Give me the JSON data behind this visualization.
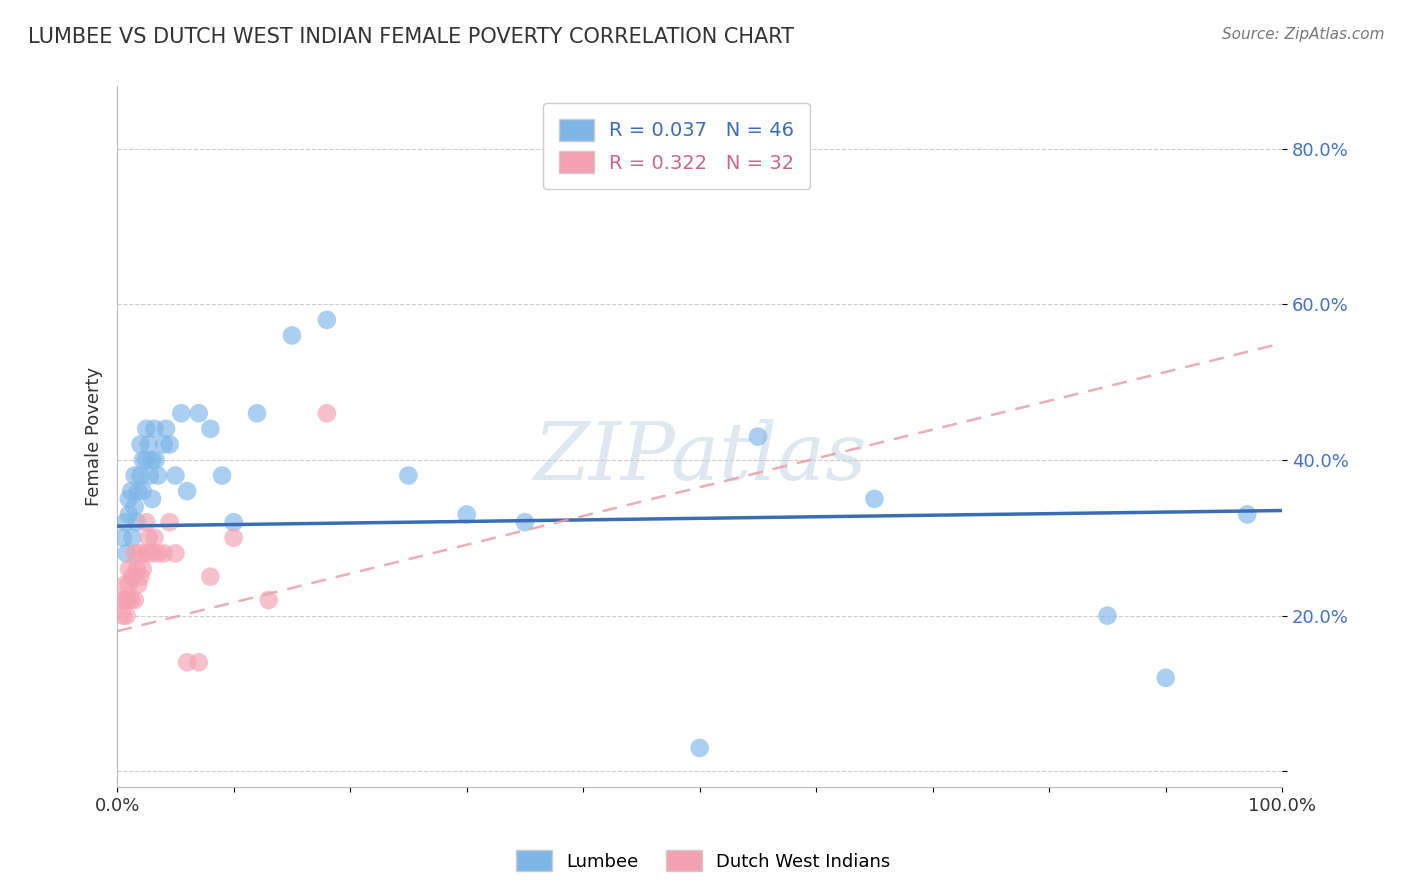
{
  "title": "LUMBEE VS DUTCH WEST INDIAN FEMALE POVERTY CORRELATION CHART",
  "source": "Source: ZipAtlas.com",
  "ylabel": "Female Poverty",
  "watermark": "ZIPatlas",
  "lumbee_R": 0.037,
  "lumbee_N": 46,
  "dutch_R": 0.322,
  "dutch_N": 32,
  "lumbee_color": "#7EB6E8",
  "dutch_color": "#F4A0B0",
  "lumbee_line_color": "#3A6DB5",
  "dutch_line_color": "#E8A0A8",
  "background": "#FFFFFF",
  "grid_color": "#CCCCCC",
  "lumbee_x": [
    0.005,
    0.007,
    0.008,
    0.01,
    0.01,
    0.012,
    0.013,
    0.015,
    0.015,
    0.017,
    0.018,
    0.02,
    0.02,
    0.022,
    0.022,
    0.025,
    0.025,
    0.027,
    0.028,
    0.03,
    0.03,
    0.032,
    0.033,
    0.035,
    0.04,
    0.042,
    0.045,
    0.05,
    0.055,
    0.06,
    0.07,
    0.08,
    0.09,
    0.1,
    0.12,
    0.15,
    0.18,
    0.25,
    0.3,
    0.35,
    0.5,
    0.55,
    0.65,
    0.85,
    0.9,
    0.97
  ],
  "lumbee_y": [
    0.3,
    0.32,
    0.28,
    0.35,
    0.33,
    0.36,
    0.3,
    0.34,
    0.38,
    0.32,
    0.36,
    0.38,
    0.42,
    0.4,
    0.36,
    0.4,
    0.44,
    0.42,
    0.38,
    0.35,
    0.4,
    0.44,
    0.4,
    0.38,
    0.42,
    0.44,
    0.42,
    0.38,
    0.46,
    0.36,
    0.46,
    0.44,
    0.38,
    0.32,
    0.46,
    0.56,
    0.58,
    0.38,
    0.33,
    0.32,
    0.03,
    0.43,
    0.35,
    0.2,
    0.12,
    0.33
  ],
  "dutch_x": [
    0.003,
    0.005,
    0.006,
    0.007,
    0.008,
    0.009,
    0.01,
    0.01,
    0.012,
    0.013,
    0.015,
    0.015,
    0.017,
    0.018,
    0.02,
    0.02,
    0.022,
    0.025,
    0.025,
    0.027,
    0.03,
    0.032,
    0.035,
    0.04,
    0.045,
    0.05,
    0.06,
    0.07,
    0.08,
    0.1,
    0.13,
    0.18
  ],
  "dutch_y": [
    0.22,
    0.2,
    0.22,
    0.24,
    0.2,
    0.22,
    0.24,
    0.26,
    0.22,
    0.25,
    0.22,
    0.28,
    0.26,
    0.24,
    0.25,
    0.28,
    0.26,
    0.28,
    0.32,
    0.3,
    0.28,
    0.3,
    0.28,
    0.28,
    0.32,
    0.28,
    0.14,
    0.14,
    0.25,
    0.3,
    0.22,
    0.46
  ],
  "xlim": [
    0.0,
    1.0
  ],
  "ylim": [
    -0.02,
    0.88
  ],
  "ytick_positions": [
    0.0,
    0.2,
    0.4,
    0.6,
    0.8
  ],
  "ytick_labels": [
    "",
    "20.0%",
    "40.0%",
    "60.0%",
    "80.0%"
  ],
  "xtick_positions": [
    0.0,
    0.1,
    0.2,
    0.3,
    0.4,
    0.5,
    0.6,
    0.7,
    0.8,
    0.9,
    1.0
  ],
  "xtick_labels_show": [
    "0.0%",
    "",
    "",
    "",
    "",
    "",
    "",
    "",
    "",
    "",
    "100.0%"
  ],
  "lumbee_line_y0": 0.315,
  "lumbee_line_y1": 0.335,
  "dutch_line_y0": 0.18,
  "dutch_line_y1": 0.55
}
